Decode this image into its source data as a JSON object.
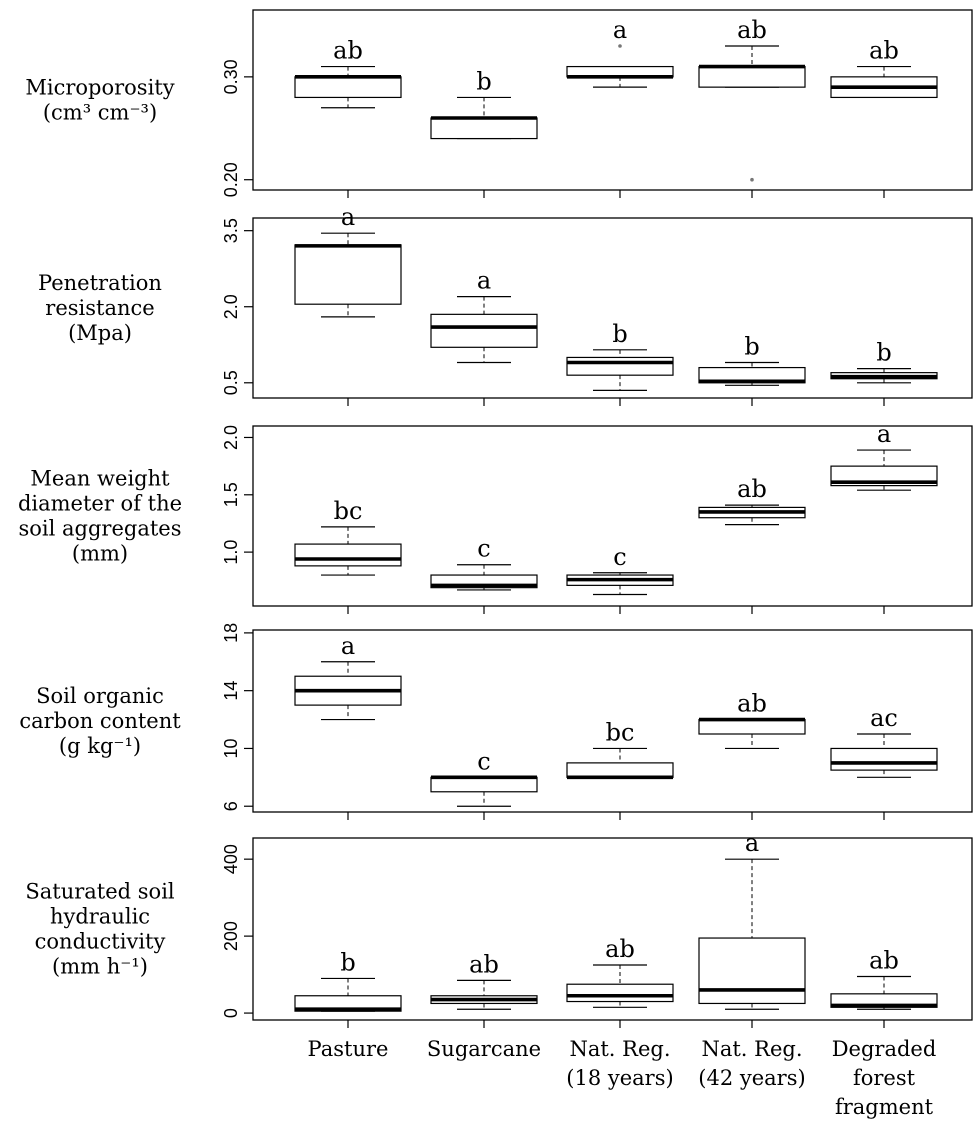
{
  "chart_data": [
    {
      "type": "boxplot",
      "ylabel_lines": [
        "Microporosity",
        "(cm³ cm⁻³)"
      ],
      "categories": [
        "Pasture",
        "Sugarcane",
        "Nat. Reg. (18 years)",
        "Nat. Reg. (42 years)",
        "Degraded forest fragment"
      ],
      "yticks": [
        "0.20",
        "0.30"
      ],
      "ytick_values": [
        0.2,
        0.3
      ],
      "ylim": [
        0.19,
        0.365
      ],
      "boxes": [
        {
          "whisker_low": 0.27,
          "q1": 0.28,
          "median": 0.3,
          "q3": 0.3,
          "whisker_high": 0.31,
          "letter": "ab",
          "outliers": []
        },
        {
          "whisker_low": 0.24,
          "q1": 0.24,
          "median": 0.26,
          "q3": 0.26,
          "whisker_high": 0.28,
          "letter": "b",
          "outliers": []
        },
        {
          "whisker_low": 0.29,
          "q1": 0.3,
          "median": 0.3,
          "q3": 0.31,
          "whisker_high": 0.31,
          "letter": "a",
          "outliers": [
            0.33
          ]
        },
        {
          "whisker_low": 0.29,
          "q1": 0.29,
          "median": 0.31,
          "q3": 0.31,
          "whisker_high": 0.33,
          "letter": "ab",
          "outliers": [
            0.2
          ]
        },
        {
          "whisker_low": 0.28,
          "q1": 0.28,
          "median": 0.29,
          "q3": 0.3,
          "whisker_high": 0.31,
          "letter": "ab",
          "outliers": []
        }
      ]
    },
    {
      "type": "boxplot",
      "ylabel_lines": [
        "Penetration",
        "resistance",
        "(Mpa)"
      ],
      "categories": [
        "Pasture",
        "Sugarcane",
        "Nat. Reg. (18 years)",
        "Nat. Reg. (42 years)",
        "Degraded forest fragment"
      ],
      "yticks": [
        "0.5",
        "2.0",
        "3.5"
      ],
      "ytick_values": [
        0.5,
        2.0,
        3.5
      ],
      "ylim": [
        0.2,
        3.75
      ],
      "boxes": [
        {
          "whisker_low": 1.8,
          "q1": 2.05,
          "median": 3.2,
          "q3": 3.22,
          "whisker_high": 3.45,
          "letter": "a",
          "outliers": []
        },
        {
          "whisker_low": 0.9,
          "q1": 1.2,
          "median": 1.6,
          "q3": 1.85,
          "whisker_high": 2.2,
          "letter": "a",
          "outliers": []
        },
        {
          "whisker_low": 0.35,
          "q1": 0.65,
          "median": 0.9,
          "q3": 1.0,
          "whisker_high": 1.15,
          "letter": "b",
          "outliers": []
        },
        {
          "whisker_low": 0.45,
          "q1": 0.5,
          "median": 0.53,
          "q3": 0.8,
          "whisker_high": 0.9,
          "letter": "b",
          "outliers": []
        },
        {
          "whisker_low": 0.5,
          "q1": 0.58,
          "median": 0.62,
          "q3": 0.7,
          "whisker_high": 0.78,
          "letter": "b",
          "outliers": []
        }
      ]
    },
    {
      "type": "boxplot",
      "ylabel_lines": [
        "Mean weight",
        "diameter of the",
        "soil aggregates",
        "(mm)"
      ],
      "categories": [
        "Pasture",
        "Sugarcane",
        "Nat. Reg. (18 years)",
        "Nat. Reg. (42 years)",
        "Degraded forest fragment"
      ],
      "yticks": [
        "1.0",
        "1.5",
        "2.0"
      ],
      "ytick_values": [
        1.0,
        1.5,
        2.0
      ],
      "ylim": [
        0.53,
        2.1
      ],
      "boxes": [
        {
          "whisker_low": 0.8,
          "q1": 0.88,
          "median": 0.94,
          "q3": 1.07,
          "whisker_high": 1.22,
          "letter": "bc",
          "outliers": []
        },
        {
          "whisker_low": 0.67,
          "q1": 0.69,
          "median": 0.71,
          "q3": 0.8,
          "whisker_high": 0.89,
          "letter": "c",
          "outliers": []
        },
        {
          "whisker_low": 0.63,
          "q1": 0.71,
          "median": 0.76,
          "q3": 0.8,
          "whisker_high": 0.82,
          "letter": "c",
          "outliers": []
        },
        {
          "whisker_low": 1.24,
          "q1": 1.3,
          "median": 1.35,
          "q3": 1.39,
          "whisker_high": 1.41,
          "letter": "ab",
          "outliers": []
        },
        {
          "whisker_low": 1.54,
          "q1": 1.58,
          "median": 1.61,
          "q3": 1.75,
          "whisker_high": 1.89,
          "letter": "a",
          "outliers": []
        }
      ]
    },
    {
      "type": "boxplot",
      "ylabel_lines": [
        "Soil organic",
        "carbon content",
        "(g kg⁻¹)"
      ],
      "categories": [
        "Pasture",
        "Sugarcane",
        "Nat. Reg. (18 years)",
        "Nat. Reg. (42 years)",
        "Degraded forest fragment"
      ],
      "yticks": [
        "6",
        "10",
        "14",
        "18"
      ],
      "ytick_values": [
        6,
        10,
        14,
        18
      ],
      "ylim": [
        5.6,
        18.2
      ],
      "boxes": [
        {
          "whisker_low": 12,
          "q1": 13,
          "median": 14,
          "q3": 15,
          "whisker_high": 16,
          "letter": "a",
          "outliers": []
        },
        {
          "whisker_low": 6,
          "q1": 7,
          "median": 8,
          "q3": 8,
          "whisker_high": 8,
          "letter": "c",
          "outliers": []
        },
        {
          "whisker_low": 8,
          "q1": 8,
          "median": 8,
          "q3": 9,
          "whisker_high": 10,
          "letter": "bc",
          "outliers": []
        },
        {
          "whisker_low": 10,
          "q1": 11,
          "median": 12,
          "q3": 12,
          "whisker_high": 12,
          "letter": "ab",
          "outliers": []
        },
        {
          "whisker_low": 8,
          "q1": 8.5,
          "median": 9,
          "q3": 10,
          "whisker_high": 11,
          "letter": "ac",
          "outliers": []
        }
      ]
    },
    {
      "type": "boxplot",
      "ylabel_lines": [
        "Saturated soil",
        "hydraulic",
        "conductivity",
        "(mm h⁻¹)"
      ],
      "categories": [
        "Pasture",
        "Sugarcane",
        "Nat. Reg. (18 years)",
        "Nat. Reg. (42 years)",
        "Degraded forest fragment"
      ],
      "yticks": [
        "0",
        "200",
        "400"
      ],
      "ytick_values": [
        0,
        200,
        400
      ],
      "ylim": [
        -18,
        455
      ],
      "boxes": [
        {
          "whisker_low": 5,
          "q1": 5,
          "median": 10,
          "q3": 45,
          "whisker_high": 90,
          "letter": "b",
          "outliers": []
        },
        {
          "whisker_low": 10,
          "q1": 25,
          "median": 35,
          "q3": 45,
          "whisker_high": 85,
          "letter": "ab",
          "outliers": []
        },
        {
          "whisker_low": 15,
          "q1": 30,
          "median": 45,
          "q3": 75,
          "whisker_high": 125,
          "letter": "ab",
          "outliers": []
        },
        {
          "whisker_low": 10,
          "q1": 25,
          "median": 60,
          "q3": 195,
          "whisker_high": 400,
          "letter": "a",
          "outliers": []
        },
        {
          "whisker_low": 10,
          "q1": 15,
          "median": 20,
          "q3": 50,
          "whisker_high": 95,
          "letter": "ab",
          "outliers": []
        }
      ]
    }
  ],
  "x_axis": {
    "category_label_lines": [
      [
        "Pasture"
      ],
      [
        "Sugarcane"
      ],
      [
        "Nat. Reg.",
        "(18 years)"
      ],
      [
        "Nat. Reg.",
        "(42 years)"
      ],
      [
        "Degraded",
        "forest",
        "fragment"
      ]
    ]
  }
}
